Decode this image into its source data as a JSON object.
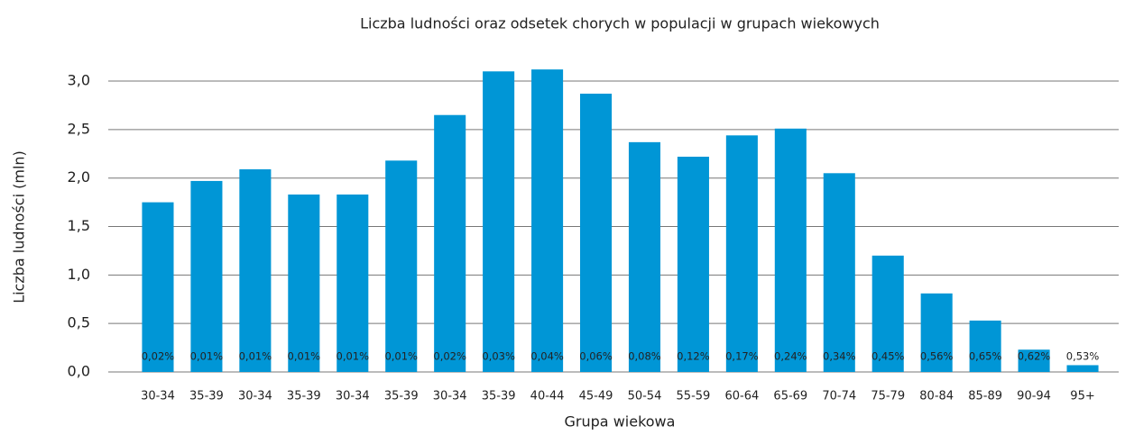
{
  "chart_data": {
    "type": "bar",
    "title": "Liczba ludności oraz odsetek chorych w populacji w grupach wiekowych",
    "xlabel": "Grupa wiekowa",
    "ylabel": "Liczba ludności (mln)",
    "categories": [
      "30-34",
      "35-39",
      "30-34",
      "35-39",
      "30-34",
      "35-39",
      "30-34",
      "35-39",
      "40-44",
      "45-49",
      "50-54",
      "55-59",
      "60-64",
      "65-69",
      "70-74",
      "75-79",
      "80-84",
      "85-89",
      "90-94",
      "95+"
    ],
    "values": [
      1.75,
      1.97,
      2.09,
      1.83,
      1.83,
      2.18,
      2.65,
      3.1,
      3.12,
      2.87,
      2.37,
      2.22,
      2.44,
      2.51,
      2.05,
      1.2,
      0.81,
      0.53,
      0.23,
      0.07
    ],
    "annotations": [
      "0,02%",
      "0,01%",
      "0,01%",
      "0,01%",
      "0,01%",
      "0,01%",
      "0,02%",
      "0,03%",
      "0,04%",
      "0,06%",
      "0,08%",
      "0,12%",
      "0,17%",
      "0,24%",
      "0,34%",
      "0,45%",
      "0,56%",
      "0,65%",
      "0,62%",
      "0,53%"
    ],
    "color": "#0096d6",
    "ylim": [
      0,
      3.2
    ],
    "yticks": [
      {
        "value": 0,
        "label": "0,0"
      },
      {
        "value": 0.5,
        "label": "0,5"
      },
      {
        "value": 1,
        "label": "1,0"
      },
      {
        "value": 1.5,
        "label": "1,5"
      },
      {
        "value": 2,
        "label": "2,0"
      },
      {
        "value": 2.5,
        "label": "2,5"
      },
      {
        "value": 3,
        "label": "3,0"
      }
    ],
    "grid": true
  }
}
